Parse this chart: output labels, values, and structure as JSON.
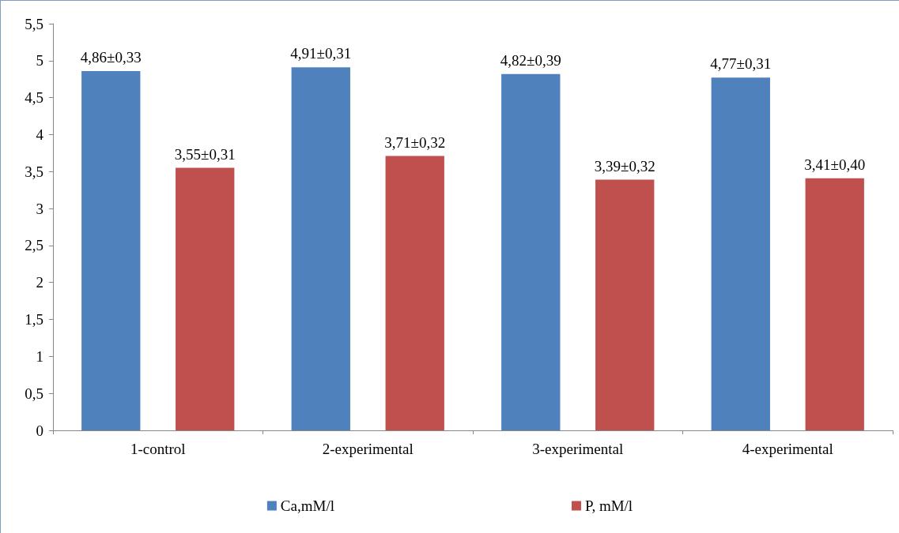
{
  "chart_data": {
    "type": "bar",
    "categories": [
      "1-control",
      "2-experimental",
      "3-experimental",
      "4-experimental"
    ],
    "series": [
      {
        "name": "Ca,mM/l",
        "color": "#4f81bd",
        "values": [
          4.86,
          4.91,
          4.82,
          4.77
        ],
        "value_labels": [
          "4,86±0,33",
          "4,91±0,31",
          "4,82±0,39",
          "4,77±0,31"
        ]
      },
      {
        "name": "P, mM/l",
        "color": "#c0504d",
        "values": [
          3.55,
          3.71,
          3.39,
          3.41
        ],
        "value_labels": [
          "3,55±0,31",
          "3,71±0,32",
          "3,39±0,32",
          "3,41±0,40"
        ]
      }
    ],
    "ylim": [
      0,
      5.5
    ],
    "yticks": [
      0,
      {
        "value": 0.5,
        "label": "0,5"
      },
      1,
      {
        "value": 1.5,
        "label": "1,5"
      },
      2,
      {
        "value": 2.5,
        "label": "2,5"
      },
      3,
      {
        "value": 3.5,
        "label": "3,5"
      },
      4,
      {
        "value": 4.5,
        "label": "4,5"
      },
      5,
      {
        "value": 5.5,
        "label": "5,5"
      }
    ],
    "grid": false,
    "legend": "bottom"
  }
}
